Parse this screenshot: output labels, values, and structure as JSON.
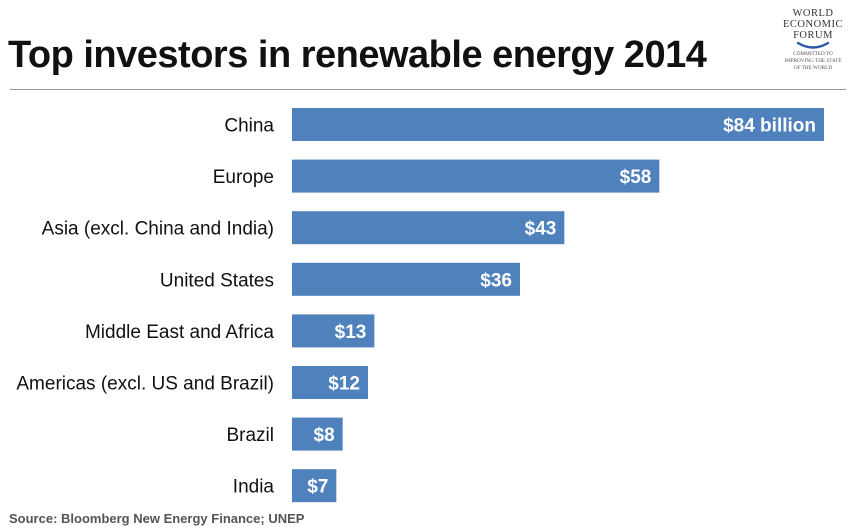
{
  "title": "Top investors in renewable energy 2014",
  "logo": {
    "name_lines": [
      "WORLD",
      "ECONOMIC",
      "FORUM"
    ],
    "tagline_lines": [
      "COMMITTED TO",
      "IMPROVING THE STATE",
      "OF THE WORLD"
    ],
    "color": "#2a5aa6"
  },
  "source": "Source:  Bloomberg New Energy Finance; UNEP",
  "chart_data": {
    "type": "bar",
    "orientation": "horizontal",
    "title": "Top investors in renewable energy 2014",
    "xlabel": "",
    "ylabel": "",
    "categories": [
      "China",
      "Europe",
      "Asia (excl. China and India)",
      "United States",
      "Middle East and Africa",
      "Americas (excl. US and Brazil)",
      "Brazil",
      "India"
    ],
    "values": [
      84,
      58,
      43,
      36,
      13,
      12,
      8,
      7
    ],
    "value_labels": [
      "$84 billion",
      "$58",
      "$43",
      "$36",
      "$13",
      "$12",
      "$8",
      "$7"
    ],
    "xlim": [
      0,
      84
    ],
    "grid": false,
    "bar_color": "#4f81bd",
    "label_color": "#ffffff"
  }
}
